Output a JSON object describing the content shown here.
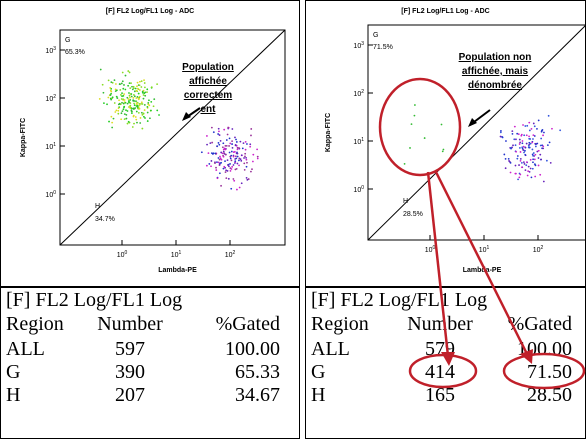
{
  "panels": [
    {
      "title": "[F] FL2 Log/FL1 Log - ADC",
      "y_label": "Kappa-FITC",
      "x_label": "Lambda-PE",
      "y_ticks": [
        {
          "base": "10",
          "exp": "3"
        },
        {
          "base": "10",
          "exp": "2"
        },
        {
          "base": "10",
          "exp": "1"
        },
        {
          "base": "10",
          "exp": "0"
        }
      ],
      "x_ticks": [
        {
          "base": "10",
          "exp": "0"
        },
        {
          "base": "10",
          "exp": "1"
        },
        {
          "base": "10",
          "exp": "2"
        }
      ],
      "regions": [
        {
          "name": "G",
          "percent": "65.3%"
        },
        {
          "name": "H",
          "percent": "34.7%"
        }
      ],
      "annotation": [
        "Population",
        "affichée",
        "correctem",
        "ent"
      ],
      "table": {
        "title": "[F] FL2 Log/FL1 Log",
        "header": [
          "Region",
          "Number",
          "%Gated"
        ],
        "rows": [
          [
            "ALL",
            "597",
            "100.00"
          ],
          [
            "G",
            "390",
            "65.33"
          ],
          [
            "H",
            "207",
            "34.67"
          ]
        ]
      }
    },
    {
      "title": "[F] FL2 Log/FL1 Log - ADC",
      "y_label": "Kappa-FITC",
      "x_label": "Lambda-PE",
      "y_ticks": [
        {
          "base": "10",
          "exp": "3"
        },
        {
          "base": "10",
          "exp": "2"
        },
        {
          "base": "10",
          "exp": "1"
        },
        {
          "base": "10",
          "exp": "0"
        }
      ],
      "x_ticks": [
        {
          "base": "10",
          "exp": "0"
        },
        {
          "base": "10",
          "exp": "1"
        },
        {
          "base": "10",
          "exp": "2"
        }
      ],
      "regions": [
        {
          "name": "G",
          "percent": "71.5%"
        },
        {
          "name": "H",
          "percent": "28.5%"
        }
      ],
      "annotation": [
        "Population non",
        "affichée, mais",
        "dénombrée"
      ],
      "table": {
        "title": "[F] FL2 Log/FL1 Log",
        "header": [
          "Region",
          "Number",
          "%Gated"
        ],
        "rows": [
          [
            "ALL",
            "579",
            "100.00"
          ],
          [
            "G",
            "414",
            "71.50"
          ],
          [
            "H",
            "165",
            "28.50"
          ]
        ]
      }
    }
  ]
}
